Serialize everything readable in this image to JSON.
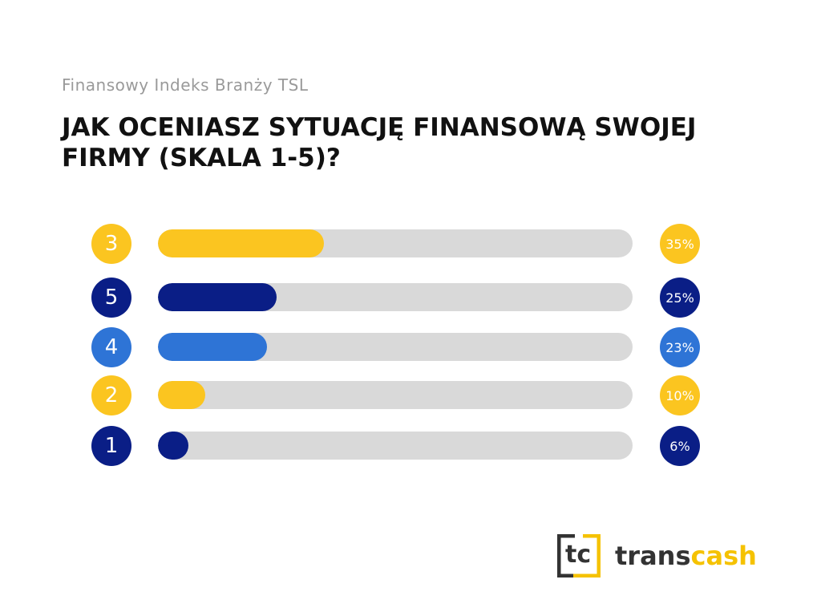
{
  "chart_data": {
    "type": "bar",
    "orientation": "horizontal",
    "subtitle": "Finansowy Indeks Branży TSL",
    "title": "JAK OCENIASZ SYTUACJĘ FINANSOWĄ SWOJEJ FIRMY (SKALA 1-5)?",
    "categories": [
      "3",
      "5",
      "4",
      "2",
      "1"
    ],
    "values": [
      35,
      25,
      23,
      10,
      6
    ],
    "value_labels": [
      "35%",
      "25%",
      "23%",
      "10%",
      "6%"
    ],
    "colors": [
      "#FBC520",
      "#0A1E86",
      "#2E74D6",
      "#FBC520",
      "#0A1E86"
    ],
    "track_color": "#D9D9D9",
    "xlim": [
      0,
      100
    ],
    "grid": false
  },
  "logo": {
    "mark": "tc",
    "word_dark": "trans",
    "word_accent": "cash"
  }
}
